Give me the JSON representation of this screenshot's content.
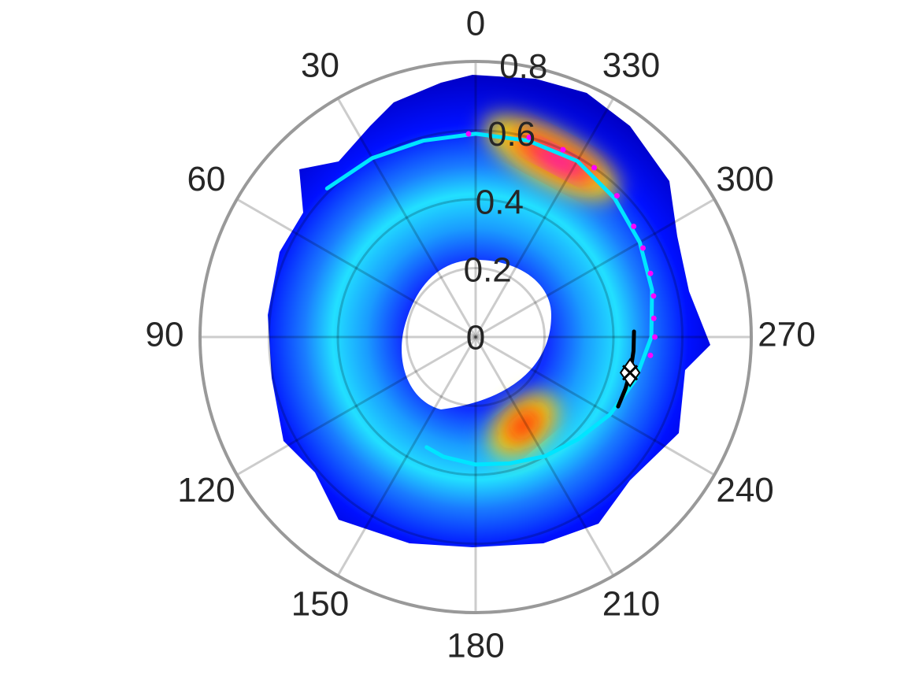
{
  "chart_data": {
    "type": "polar",
    "theta_zero": "top",
    "theta_direction": "counterclockwise",
    "rlim": [
      0,
      0.8
    ],
    "rticks": [
      0,
      0.2,
      0.4,
      0.6,
      0.8
    ],
    "thetaticks": [
      0,
      30,
      60,
      90,
      120,
      150,
      180,
      210,
      240,
      270,
      300,
      330
    ],
    "grid": true,
    "series": [
      {
        "style": "line",
        "color": "#00e5ff",
        "theta": [
          45,
          30,
          15,
          0,
          345,
          330,
          315,
          300,
          285,
          270,
          255,
          240,
          225,
          210,
          195,
          180,
          165,
          156
        ],
        "r": [
          0.61,
          0.6,
          0.59,
          0.59,
          0.59,
          0.59,
          0.57,
          0.55,
          0.53,
          0.51,
          0.48,
          0.45,
          0.42,
          0.4,
          0.38,
          0.37,
          0.36,
          0.35
        ]
      },
      {
        "style": "points",
        "color": "#ff00ff",
        "theta": [
          2,
          345,
          335,
          325,
          315,
          305,
          298,
          290,
          283,
          276,
          270,
          264
        ],
        "r": [
          0.59,
          0.6,
          0.6,
          0.6,
          0.58,
          0.56,
          0.55,
          0.54,
          0.53,
          0.52,
          0.52,
          0.51
        ]
      },
      {
        "style": "line",
        "color": "#000000",
        "theta": [
          272,
          265,
          258,
          251,
          244
        ],
        "r": [
          0.46,
          0.46,
          0.46,
          0.46,
          0.46
        ]
      },
      {
        "style": "marker",
        "color": "#ffffff",
        "theta": [
          257
        ],
        "r": [
          0.46
        ]
      }
    ]
  }
}
